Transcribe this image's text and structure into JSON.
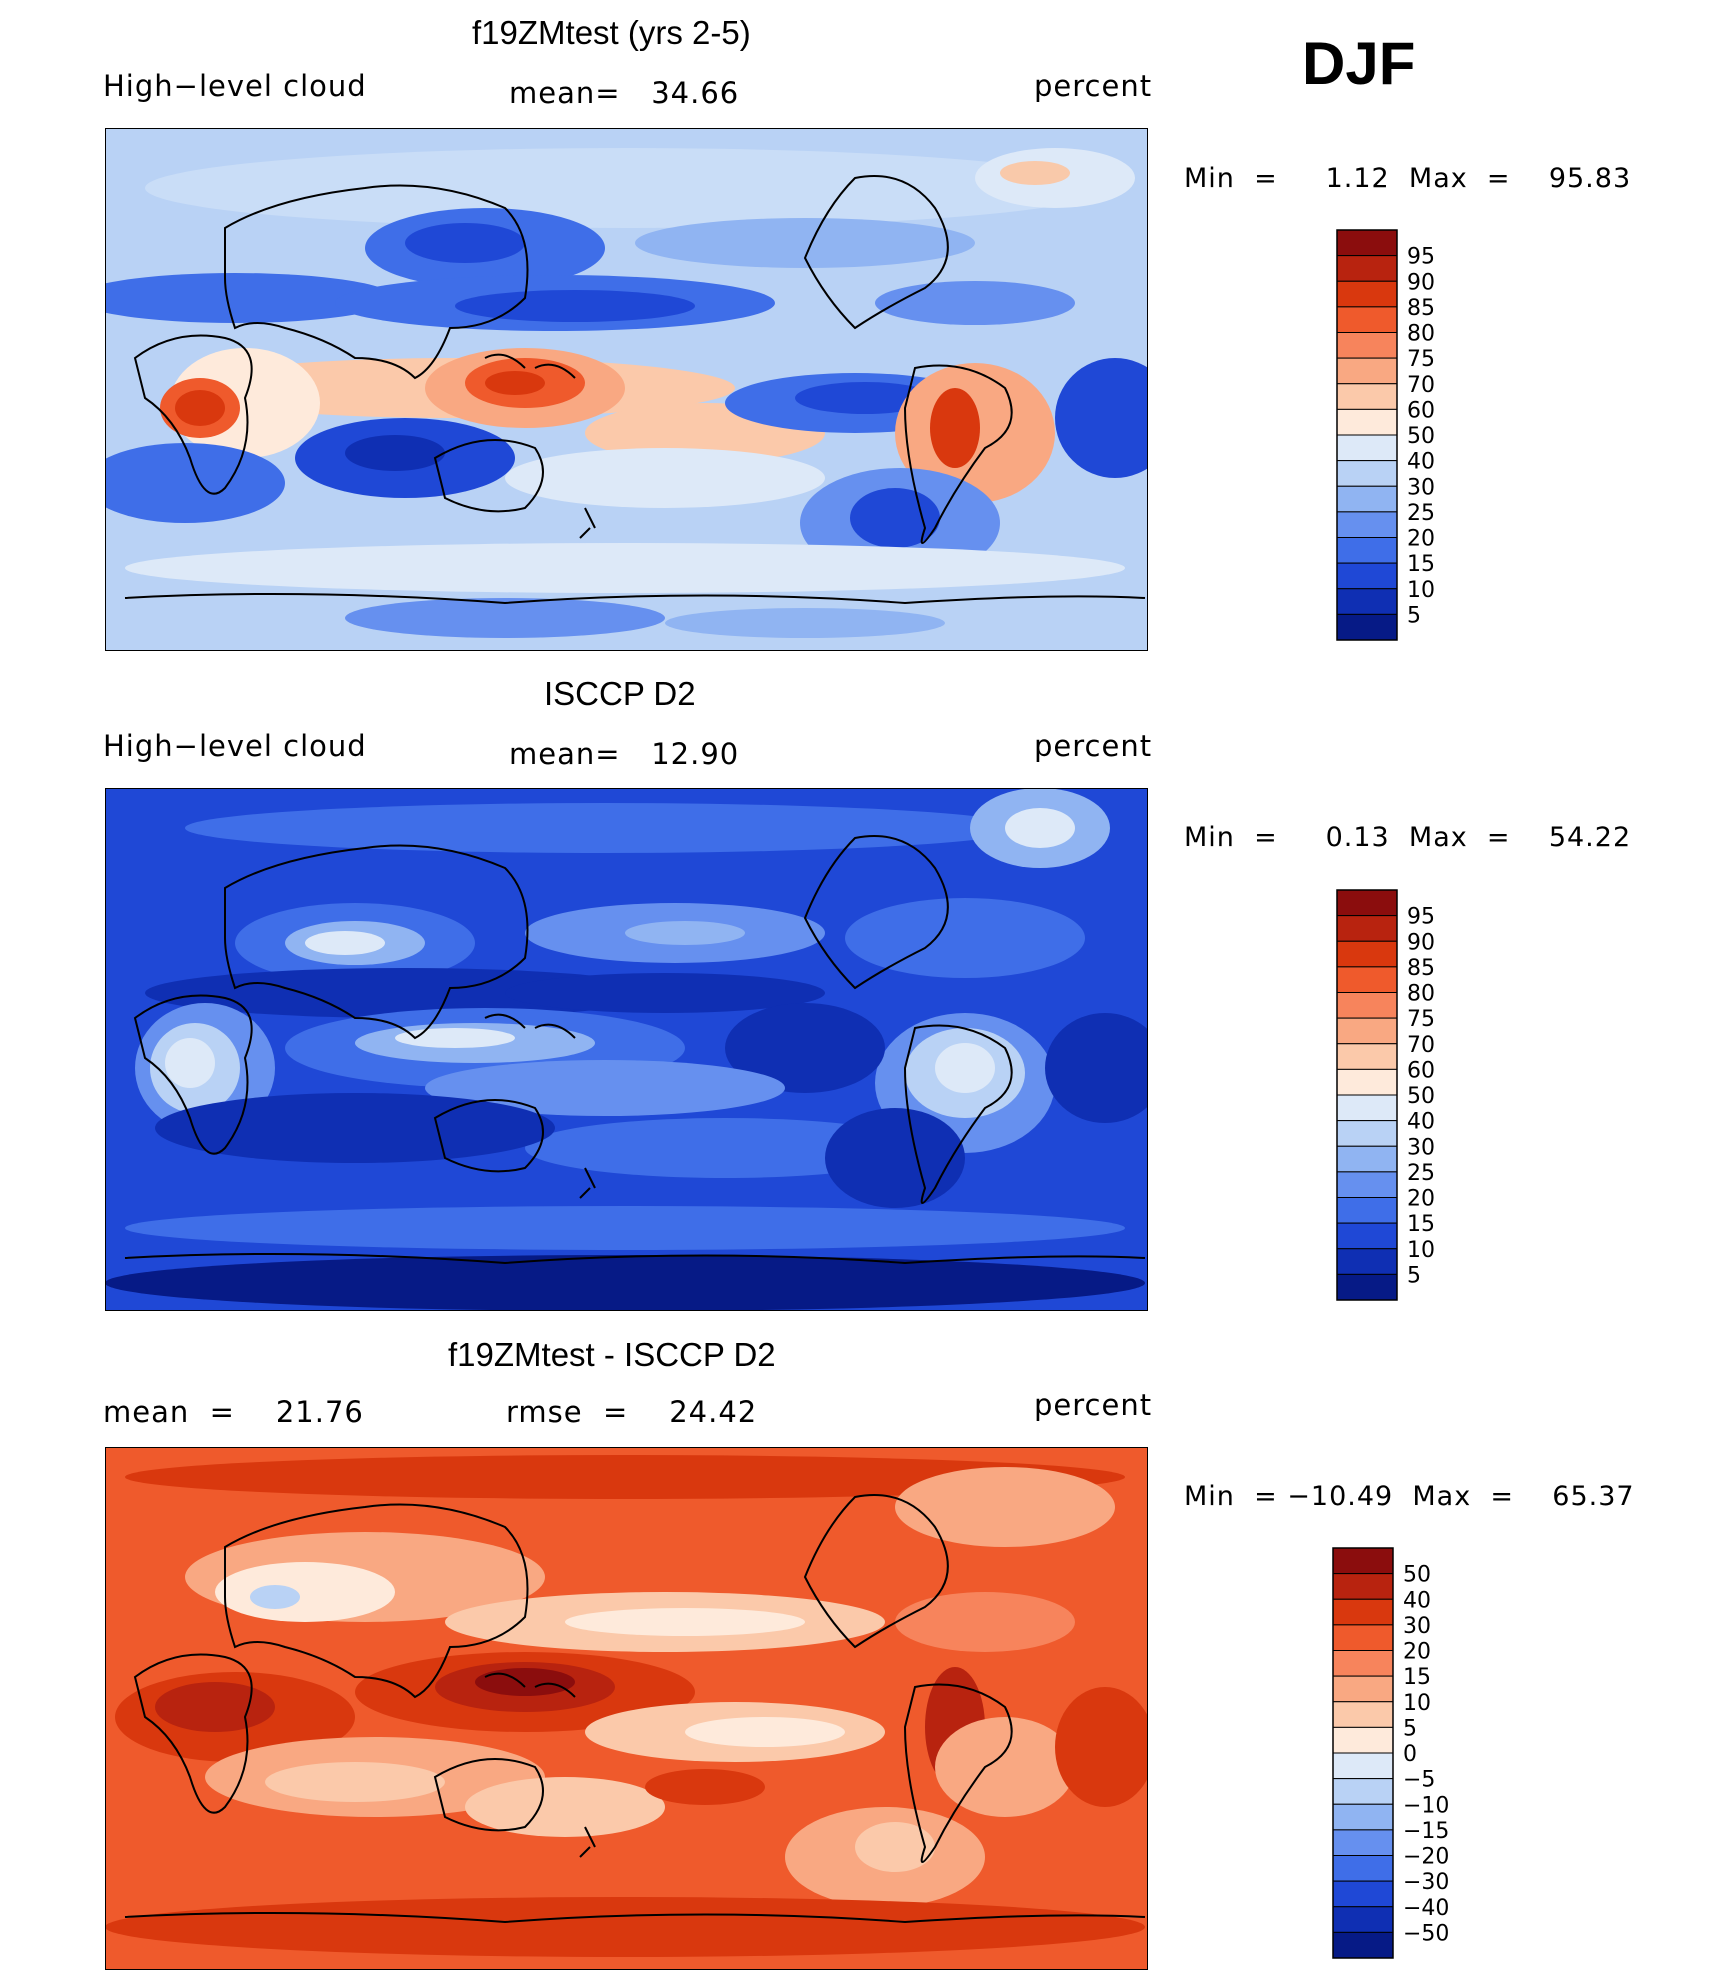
{
  "season": "DJF",
  "panels": [
    {
      "title": "f19ZMtest (yrs 2-5)",
      "left_label": "High−level cloud",
      "center_label": "mean=   34.66",
      "right_label": "percent",
      "minmax": "Min  =     1.12  Max  =    95.83",
      "colorbar": {
        "levels": [
          "95",
          "90",
          "85",
          "80",
          "75",
          "70",
          "60",
          "50",
          "40",
          "30",
          "25",
          "20",
          "15",
          "10",
          "5"
        ],
        "colors": [
          "#8b0d0d",
          "#b8230f",
          "#d9380e",
          "#ef5a2c",
          "#f7845c",
          "#f9a882",
          "#fbc9aa",
          "#feeadb",
          "#dde9f8",
          "#b9d2f5",
          "#90b4f2",
          "#6690ef",
          "#3f6ee8",
          "#1f48d6",
          "#0f2fb3",
          "#061a86"
        ]
      }
    },
    {
      "title": "ISCCP D2",
      "left_label": "High−level cloud",
      "center_label": "mean=   12.90",
      "right_label": "percent",
      "minmax": "Min  =     0.13  Max  =    54.22",
      "colorbar": {
        "levels": [
          "95",
          "90",
          "85",
          "80",
          "75",
          "70",
          "60",
          "50",
          "40",
          "30",
          "25",
          "20",
          "15",
          "10",
          "5"
        ],
        "colors": [
          "#8b0d0d",
          "#b8230f",
          "#d9380e",
          "#ef5a2c",
          "#f7845c",
          "#f9a882",
          "#fbc9aa",
          "#feeadb",
          "#dde9f8",
          "#b9d2f5",
          "#90b4f2",
          "#6690ef",
          "#3f6ee8",
          "#1f48d6",
          "#0f2fb3",
          "#061a86"
        ]
      }
    },
    {
      "title": "f19ZMtest - ISCCP D2",
      "left_label": "mean  =    21.76",
      "center_label": "rmse  =    24.42",
      "right_label": "percent",
      "minmax": "Min  = −10.49  Max  =    65.37",
      "colorbar": {
        "levels": [
          "50",
          "40",
          "30",
          "20",
          "15",
          "10",
          "5",
          "0",
          "−5",
          "−10",
          "−15",
          "−20",
          "−30",
          "−40",
          "−50"
        ],
        "colors": [
          "#8b0d0d",
          "#b8230f",
          "#d9380e",
          "#ef5a2c",
          "#f7845c",
          "#f9a882",
          "#fbc9aa",
          "#feeadb",
          "#dde9f8",
          "#b9d2f5",
          "#90b4f2",
          "#6690ef",
          "#3f6ee8",
          "#1f48d6",
          "#0f2fb3",
          "#061a86"
        ]
      }
    }
  ],
  "chart_data": [
    {
      "type": "heatmap",
      "title": "f19ZMtest (yrs 2-5)",
      "variable": "High-level cloud",
      "units": "percent",
      "mean": 34.66,
      "min": 1.12,
      "max": 95.83,
      "contour_levels": [
        5,
        10,
        15,
        20,
        25,
        30,
        40,
        50,
        60,
        70,
        75,
        80,
        85,
        90,
        95
      ],
      "map_colors": {
        "ocean": "#b9d2f5"
      }
    },
    {
      "type": "heatmap",
      "title": "ISCCP D2",
      "variable": "High-level cloud",
      "units": "percent",
      "mean": 12.9,
      "min": 0.13,
      "max": 54.22,
      "contour_levels": [
        5,
        10,
        15,
        20,
        25,
        30,
        40,
        50,
        60,
        70,
        75,
        80,
        85,
        90,
        95
      ],
      "map_colors": {
        "ocean": "#1f48d6"
      }
    },
    {
      "type": "heatmap",
      "title": "f19ZMtest - ISCCP D2",
      "units": "percent",
      "mean": 21.76,
      "rmse": 24.42,
      "min": -10.49,
      "max": 65.37,
      "contour_levels": [
        -50,
        -40,
        -30,
        -20,
        -15,
        -10,
        -5,
        0,
        5,
        10,
        15,
        20,
        30,
        40,
        50
      ],
      "map_colors": {
        "ocean": "#ef5a2c"
      }
    }
  ]
}
